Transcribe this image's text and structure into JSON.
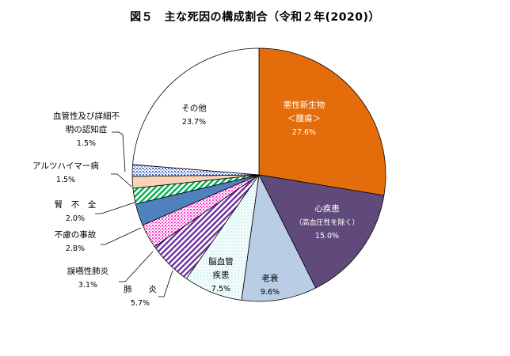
{
  "title": "図５　主な死因の構成割合（令和２年(2020)）",
  "chart_data": {
    "type": "pie",
    "start_angle_deg": 0,
    "direction": "clockwise",
    "slices": [
      {
        "label_lines": [
          "悪性新生物",
          "＜腫瘍＞"
        ],
        "value": 27.6,
        "value_text": "27.6%",
        "color": "#E46C0A",
        "pattern": "solid",
        "label_color": "#ffffff"
      },
      {
        "label_lines": [
          "心疾患",
          "（高血圧性を除く）"
        ],
        "value": 15.0,
        "value_text": "15.0%",
        "color": "#604A7B",
        "pattern": "solid",
        "label_color": "#ffffff"
      },
      {
        "label_lines": [
          "老衰"
        ],
        "value": 9.6,
        "value_text": "9.6%",
        "color": "#B9CDE5",
        "pattern": "solid",
        "label_color": "#000000"
      },
      {
        "label_lines": [
          "脳血管",
          "疾患"
        ],
        "value": 7.5,
        "value_text": "7.5%",
        "color": "#CCF0F0",
        "pattern": "dots",
        "label_color": "#000000"
      },
      {
        "label_lines": [
          "肺　　炎"
        ],
        "value": 5.7,
        "value_text": "5.7%",
        "color": "#7030A0",
        "pattern": "diag",
        "label_color": "#000000"
      },
      {
        "label_lines": [
          "誤嚥性肺炎"
        ],
        "value": 3.1,
        "value_text": "3.1%",
        "color": "#FF33CC",
        "pattern": "dots",
        "label_color": "#000000"
      },
      {
        "label_lines": [
          "不慮の事故"
        ],
        "value": 2.8,
        "value_text": "2.8%",
        "color": "#4F81BD",
        "pattern": "solid",
        "label_color": "#000000"
      },
      {
        "label_lines": [
          "腎　不　全"
        ],
        "value": 2.0,
        "value_text": "2.0%",
        "color": "#00B050",
        "pattern": "diag",
        "label_color": "#000000"
      },
      {
        "label_lines": [
          "アルツハイマー病"
        ],
        "value": 1.5,
        "value_text": "1.5%",
        "color": "#FAD3B7",
        "pattern": "solid",
        "label_color": "#000000"
      },
      {
        "label_lines": [
          "血管性及び詳細不",
          "明の認知症"
        ],
        "value": 1.5,
        "value_text": "1.5%",
        "color": "#4F6FD0",
        "pattern": "dots",
        "label_color": "#000000"
      },
      {
        "label_lines": [
          "その他"
        ],
        "value": 23.7,
        "value_text": "23.7%",
        "color": "#FFFFFF",
        "pattern": "solid",
        "label_color": "#000000"
      }
    ]
  }
}
